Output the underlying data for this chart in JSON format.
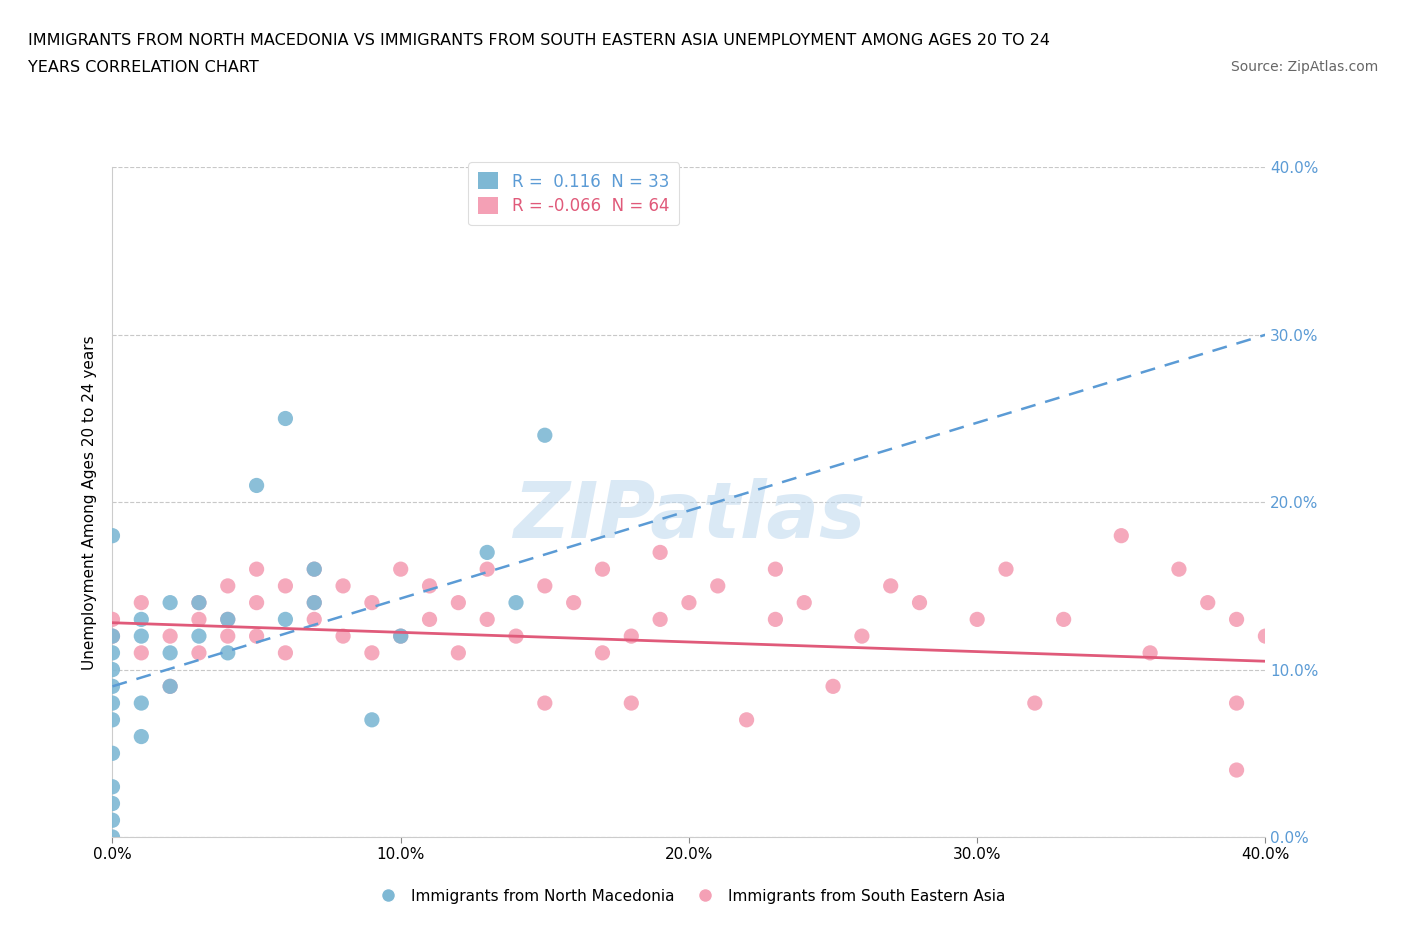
{
  "title_line1": "IMMIGRANTS FROM NORTH MACEDONIA VS IMMIGRANTS FROM SOUTH EASTERN ASIA UNEMPLOYMENT AMONG AGES 20 TO 24",
  "title_line2": "YEARS CORRELATION CHART",
  "source": "Source: ZipAtlas.com",
  "ylabel": "Unemployment Among Ages 20 to 24 years",
  "xlim": [
    0.0,
    0.4
  ],
  "ylim": [
    0.0,
    0.4
  ],
  "x_ticks": [
    0.0,
    0.1,
    0.2,
    0.3,
    0.4
  ],
  "y_ticks": [
    0.0,
    0.1,
    0.2,
    0.3,
    0.4
  ],
  "x_tick_labels": [
    "0.0%",
    "10.0%",
    "20.0%",
    "30.0%",
    "40.0%"
  ],
  "y_tick_labels": [
    "0.0%",
    "10.0%",
    "20.0%",
    "30.0%",
    "40.0%"
  ],
  "watermark": "ZIPatlas",
  "blue_R": 0.116,
  "blue_N": 33,
  "pink_R": -0.066,
  "pink_N": 64,
  "blue_color": "#7eb8d4",
  "pink_color": "#f4a0b5",
  "blue_line_color": "#5b9bd5",
  "pink_line_color": "#e05a7a",
  "grid_color": "#c8c8c8",
  "background_color": "#ffffff",
  "blue_line_x": [
    0.0,
    0.4
  ],
  "blue_line_y": [
    0.09,
    0.3
  ],
  "pink_line_x": [
    0.0,
    0.4
  ],
  "pink_line_y": [
    0.128,
    0.105
  ],
  "blue_points_x": [
    0.0,
    0.0,
    0.0,
    0.0,
    0.0,
    0.0,
    0.0,
    0.0,
    0.0,
    0.0,
    0.0,
    0.0,
    0.01,
    0.01,
    0.01,
    0.01,
    0.02,
    0.02,
    0.02,
    0.03,
    0.03,
    0.04,
    0.04,
    0.05,
    0.06,
    0.06,
    0.07,
    0.07,
    0.09,
    0.1,
    0.13,
    0.14,
    0.15
  ],
  "blue_points_y": [
    0.0,
    0.01,
    0.02,
    0.03,
    0.05,
    0.07,
    0.08,
    0.09,
    0.1,
    0.11,
    0.12,
    0.18,
    0.12,
    0.13,
    0.08,
    0.06,
    0.14,
    0.11,
    0.09,
    0.12,
    0.14,
    0.11,
    0.13,
    0.21,
    0.13,
    0.25,
    0.14,
    0.16,
    0.07,
    0.12,
    0.17,
    0.14,
    0.24
  ],
  "pink_points_x": [
    0.0,
    0.0,
    0.01,
    0.01,
    0.02,
    0.02,
    0.03,
    0.03,
    0.03,
    0.04,
    0.04,
    0.04,
    0.05,
    0.05,
    0.05,
    0.06,
    0.06,
    0.07,
    0.07,
    0.07,
    0.08,
    0.08,
    0.09,
    0.09,
    0.1,
    0.1,
    0.11,
    0.11,
    0.12,
    0.12,
    0.13,
    0.13,
    0.14,
    0.15,
    0.15,
    0.16,
    0.17,
    0.17,
    0.18,
    0.18,
    0.19,
    0.19,
    0.2,
    0.21,
    0.22,
    0.23,
    0.23,
    0.24,
    0.25,
    0.26,
    0.27,
    0.28,
    0.3,
    0.31,
    0.32,
    0.33,
    0.35,
    0.36,
    0.37,
    0.38,
    0.39,
    0.39,
    0.39,
    0.4
  ],
  "pink_points_y": [
    0.12,
    0.13,
    0.11,
    0.14,
    0.12,
    0.09,
    0.13,
    0.11,
    0.14,
    0.13,
    0.12,
    0.15,
    0.14,
    0.12,
    0.16,
    0.15,
    0.11,
    0.14,
    0.13,
    0.16,
    0.12,
    0.15,
    0.11,
    0.14,
    0.16,
    0.12,
    0.13,
    0.15,
    0.14,
    0.11,
    0.13,
    0.16,
    0.12,
    0.15,
    0.08,
    0.14,
    0.11,
    0.16,
    0.12,
    0.08,
    0.13,
    0.17,
    0.14,
    0.15,
    0.07,
    0.13,
    0.16,
    0.14,
    0.09,
    0.12,
    0.15,
    0.14,
    0.13,
    0.16,
    0.08,
    0.13,
    0.18,
    0.11,
    0.16,
    0.14,
    0.13,
    0.08,
    0.04,
    0.12
  ]
}
